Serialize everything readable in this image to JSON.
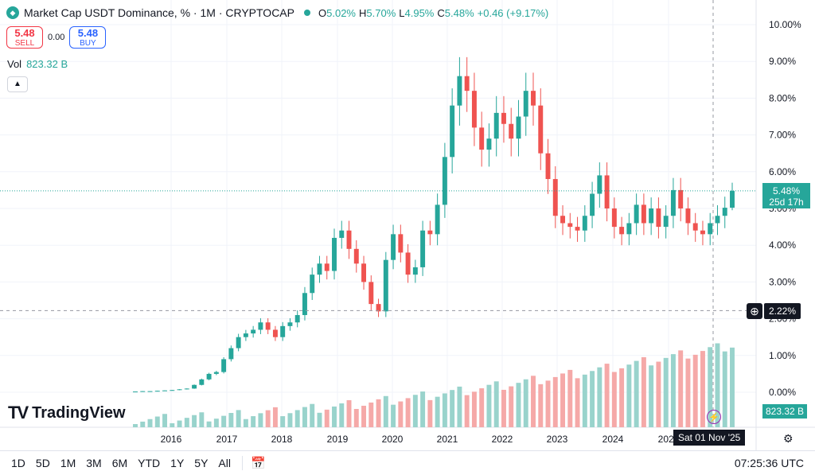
{
  "header": {
    "title": "Market Cap USDT Dominance, % · 1M · CRYPTOCAP",
    "ohlc": [
      {
        "k": "O",
        "v": "5.02%"
      },
      {
        "k": "H",
        "v": "5.70%"
      },
      {
        "k": "L",
        "v": "4.95%"
      },
      {
        "k": "C",
        "v": "5.48%"
      },
      {
        "k": "",
        "v": "+0.46 (+9.17%)"
      }
    ]
  },
  "trade": {
    "sell_price": "5.48",
    "sell_label": "SELL",
    "spread": "0.00",
    "buy_price": "5.48",
    "buy_label": "BUY"
  },
  "volume": {
    "label": "Vol",
    "value": "823.32 B"
  },
  "logo": {
    "text": "TradingView"
  },
  "tags": {
    "price_value": "5.48%",
    "price_countdown": "25d 17h",
    "crosshair_value": "2.22%",
    "volume_value": "823.32 B",
    "crosshair_date": "Sat 01 Nov '25"
  },
  "bottom": {
    "ranges": [
      "1D",
      "5D",
      "1M",
      "3M",
      "6M",
      "YTD",
      "1Y",
      "5Y",
      "All"
    ],
    "clock": "07:25:36 UTC"
  },
  "colors": {
    "up": "#26a69a",
    "down": "#ef5350",
    "vol_up": "#99d3cc",
    "vol_down": "#f5a9a8"
  },
  "chart_data": {
    "type": "candlestick",
    "title": "Market Cap USDT Dominance, % · 1M · CRYPTOCAP",
    "y_ticks": [
      "10.00%",
      "9.00%",
      "8.00%",
      "7.00%",
      "6.00%",
      "5.00%",
      "4.00%",
      "3.00%",
      "2.00%",
      "1.00%",
      "0.00%"
    ],
    "ylim": [
      0,
      10
    ],
    "x_ticks": [
      "2016",
      "2017",
      "2018",
      "2019",
      "2020",
      "2021",
      "2022",
      "2023",
      "2024",
      "2025"
    ],
    "xlim": [
      2015.0,
      2026.0
    ],
    "grid": true,
    "last": {
      "open": 5.02,
      "high": 5.7,
      "low": 4.95,
      "close": 5.48
    },
    "crosshair": {
      "y": 2.22,
      "date": "Sat 01 Nov '25"
    },
    "series": [
      {
        "name": "close",
        "x": [
          2015.25,
          2015.5,
          2015.75,
          2016.0,
          2016.25,
          2016.5,
          2016.75,
          2017.0,
          2017.2,
          2017.4,
          2017.6,
          2017.8,
          2018.0,
          2018.2,
          2018.4,
          2018.6,
          2018.8,
          2019.0,
          2019.2,
          2019.4,
          2019.6,
          2019.8,
          2020.0,
          2020.1,
          2020.2,
          2020.3,
          2020.4,
          2020.5,
          2020.6,
          2020.7,
          2020.8,
          2020.9,
          2021.0,
          2021.1,
          2021.2,
          2021.3,
          2021.4,
          2021.5,
          2021.6,
          2021.7,
          2021.8,
          2021.9,
          2022.0,
          2022.1,
          2022.2,
          2022.3,
          2022.4,
          2022.5,
          2022.6,
          2022.7,
          2022.8,
          2022.9,
          2023.0,
          2023.1,
          2023.2,
          2023.3,
          2023.4,
          2023.5,
          2023.6,
          2023.7,
          2023.8,
          2023.9,
          2024.0,
          2024.1,
          2024.2,
          2024.3,
          2024.4,
          2024.5,
          2024.6,
          2024.7,
          2024.8,
          2024.9,
          2025.0,
          2025.1,
          2025.2,
          2025.3,
          2025.4,
          2025.5,
          2025.6,
          2025.7,
          2025.8,
          2025.9
        ],
        "y": [
          0.02,
          0.03,
          0.03,
          0.04,
          0.05,
          0.06,
          0.08,
          0.1,
          0.2,
          0.35,
          0.5,
          0.55,
          0.9,
          1.2,
          1.5,
          1.6,
          1.7,
          1.9,
          1.7,
          1.5,
          1.8,
          1.9,
          2.1,
          2.7,
          3.2,
          3.5,
          3.3,
          4.2,
          4.4,
          3.9,
          3.5,
          3.0,
          2.4,
          2.2,
          3.6,
          4.3,
          3.8,
          3.2,
          3.4,
          4.4,
          4.3,
          5.1,
          6.4,
          7.8,
          8.6,
          8.2,
          7.2,
          6.6,
          6.9,
          7.6,
          7.3,
          6.9,
          7.5,
          8.2,
          7.8,
          6.5,
          5.8,
          4.8,
          4.6,
          4.5,
          4.4,
          4.8,
          5.4,
          5.9,
          5.0,
          4.5,
          4.3,
          4.6,
          5.1,
          4.6,
          5.0,
          4.5,
          4.8,
          5.5,
          5.0,
          4.6,
          4.4,
          4.3,
          4.6,
          4.8,
          5.02,
          5.48
        ]
      }
    ],
    "volume_series": {
      "name": "Vol"
    }
  }
}
